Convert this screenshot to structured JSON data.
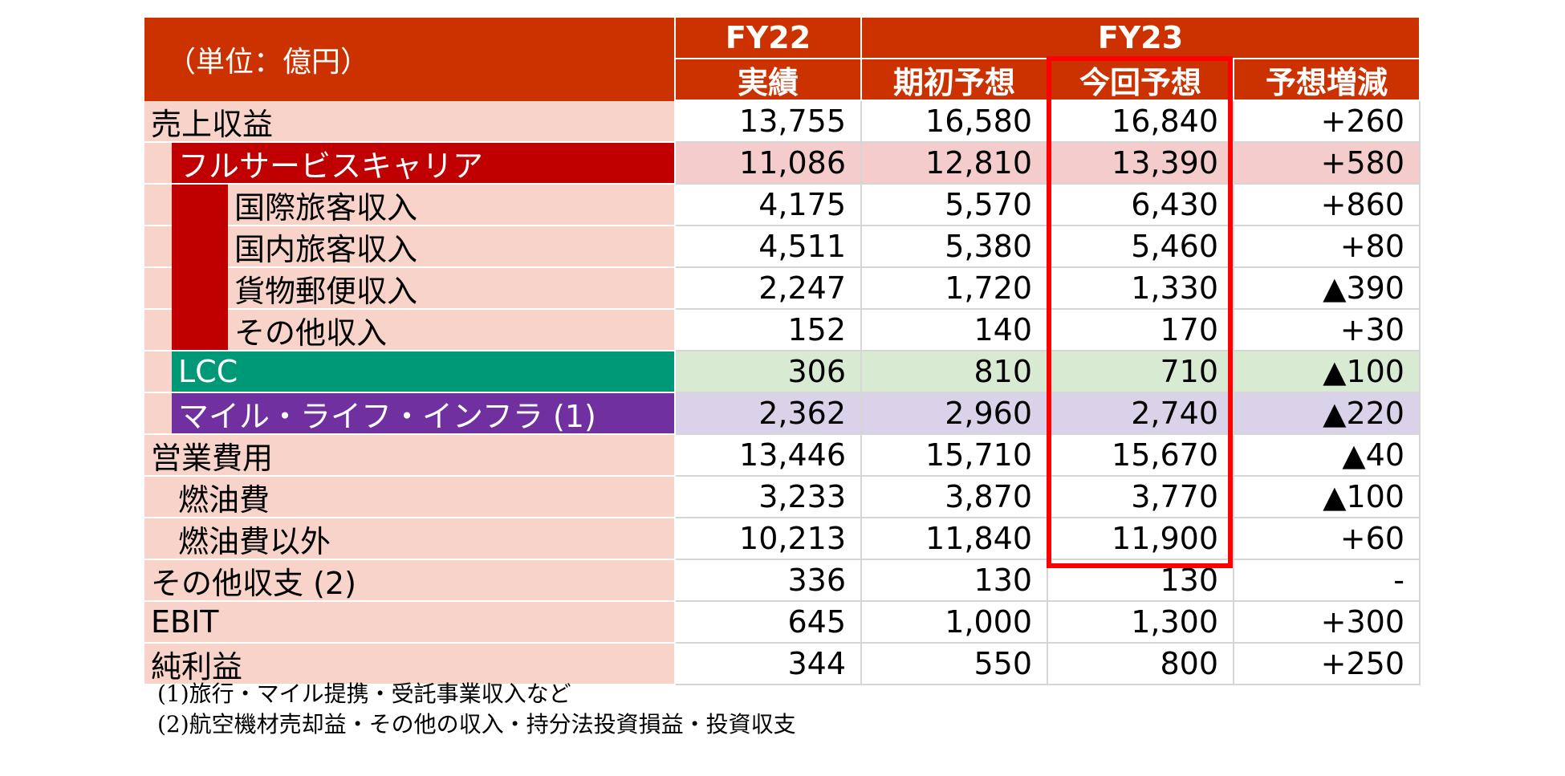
{
  "header": {
    "unit": "（単位：億円）",
    "fy22": "FY22",
    "fy23": "FY23",
    "columns": [
      "実績",
      "期初予想",
      "今回予想",
      "予想増減"
    ]
  },
  "rows": [
    {
      "label": "売上収益",
      "values": [
        "13,755",
        "16,580",
        "16,840",
        "+260"
      ]
    },
    {
      "label": "フルサービスキャリア",
      "values": [
        "11,086",
        "12,810",
        "13,390",
        "+580"
      ]
    },
    {
      "label": "国際旅客収入",
      "values": [
        "4,175",
        "5,570",
        "6,430",
        "+860"
      ]
    },
    {
      "label": "国内旅客収入",
      "values": [
        "4,511",
        "5,380",
        "5,460",
        "+80"
      ]
    },
    {
      "label": "貨物郵便収入",
      "values": [
        "2,247",
        "1,720",
        "1,330",
        "▲390"
      ]
    },
    {
      "label": "その他収入",
      "values": [
        "152",
        "140",
        "170",
        "+30"
      ]
    },
    {
      "label": "LCC",
      "values": [
        "306",
        "810",
        "710",
        "▲100"
      ]
    },
    {
      "label": "マイル・ライフ・インフラ (1)",
      "values": [
        "2,362",
        "2,960",
        "2,740",
        "▲220"
      ]
    },
    {
      "label": "営業費用",
      "values": [
        "13,446",
        "15,710",
        "15,670",
        "▲40"
      ]
    },
    {
      "label": "燃油費",
      "values": [
        "3,233",
        "3,870",
        "3,770",
        "▲100"
      ]
    },
    {
      "label": "燃油費以外",
      "values": [
        "10,213",
        "11,840",
        "11,900",
        "+60"
      ]
    },
    {
      "label": "その他収支 (2)",
      "values": [
        "336",
        "130",
        "130",
        "-"
      ]
    },
    {
      "label": "EBIT",
      "values": [
        "645",
        "1,000",
        "1,300",
        "+300"
      ]
    },
    {
      "label": "純利益",
      "values": [
        "344",
        "550",
        "800",
        "+250"
      ]
    }
  ],
  "footnotes": [
    "(1)旅行・マイル提携・受託事業収入など",
    "(2)航空機材売却益・その他の収入・持分法投資損益・投資収支"
  ],
  "colors": {
    "header": "#cc3100",
    "label_bg": "#f8d3c9",
    "fsc": "#c00000",
    "lcc": "#009977",
    "mile": "#7030a0",
    "highlight": "#ff0000"
  }
}
